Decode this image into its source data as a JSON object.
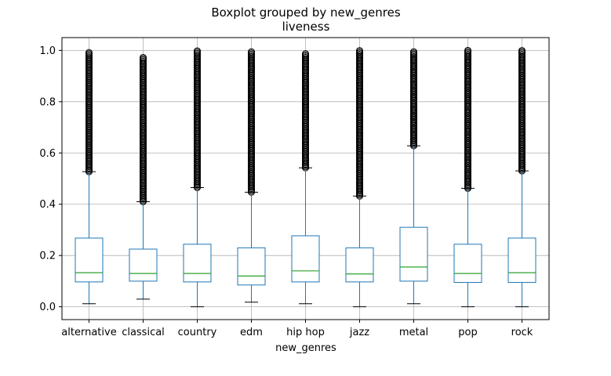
{
  "chart_data": {
    "type": "boxplot",
    "title": "Boxplot grouped by new_genres",
    "subtitle": "liveness",
    "xlabel": "new_genres",
    "ylabel": "",
    "ylim": [
      -0.05,
      1.05
    ],
    "yticks": [
      "0.0",
      "0.2",
      "0.4",
      "0.6",
      "0.8",
      "1.0"
    ],
    "grid": true,
    "colors": {
      "box": "#1f77b4",
      "median": "#2ca02c",
      "whisker_cap": "#000000",
      "flier": "#000000",
      "grid": "#b0b0b0"
    },
    "categories": [
      "alternative",
      "classical",
      "country",
      "edm",
      "hip hop",
      "jazz",
      "metal",
      "pop",
      "rock"
    ],
    "boxes": [
      {
        "category": "alternative",
        "whisker_low": 0.012,
        "q1": 0.097,
        "median": 0.133,
        "q3": 0.268,
        "whisker_high": 0.527,
        "fliers_min": 0.527,
        "fliers_max": 0.995
      },
      {
        "category": "classical",
        "whisker_low": 0.03,
        "q1": 0.1,
        "median": 0.13,
        "q3": 0.225,
        "whisker_high": 0.41,
        "fliers_min": 0.41,
        "fliers_max": 0.975
      },
      {
        "category": "country",
        "whisker_low": 0.0,
        "q1": 0.097,
        "median": 0.13,
        "q3": 0.244,
        "whisker_high": 0.465,
        "fliers_min": 0.465,
        "fliers_max": 1.0
      },
      {
        "category": "edm",
        "whisker_low": 0.018,
        "q1": 0.085,
        "median": 0.12,
        "q3": 0.23,
        "whisker_high": 0.447,
        "fliers_min": 0.447,
        "fliers_max": 0.995
      },
      {
        "category": "hip hop",
        "whisker_low": 0.012,
        "q1": 0.097,
        "median": 0.14,
        "q3": 0.277,
        "whisker_high": 0.542,
        "fliers_min": 0.542,
        "fliers_max": 0.99
      },
      {
        "category": "jazz",
        "whisker_low": 0.0,
        "q1": 0.097,
        "median": 0.128,
        "q3": 0.23,
        "whisker_high": 0.432,
        "fliers_min": 0.432,
        "fliers_max": 1.0
      },
      {
        "category": "metal",
        "whisker_low": 0.012,
        "q1": 0.1,
        "median": 0.155,
        "q3": 0.31,
        "whisker_high": 0.628,
        "fliers_min": 0.628,
        "fliers_max": 0.995
      },
      {
        "category": "pop",
        "whisker_low": 0.0,
        "q1": 0.095,
        "median": 0.13,
        "q3": 0.244,
        "whisker_high": 0.462,
        "fliers_min": 0.462,
        "fliers_max": 1.0
      },
      {
        "category": "rock",
        "whisker_low": 0.0,
        "q1": 0.095,
        "median": 0.133,
        "q3": 0.268,
        "whisker_high": 0.53,
        "fliers_min": 0.53,
        "fliers_max": 1.0
      }
    ]
  }
}
